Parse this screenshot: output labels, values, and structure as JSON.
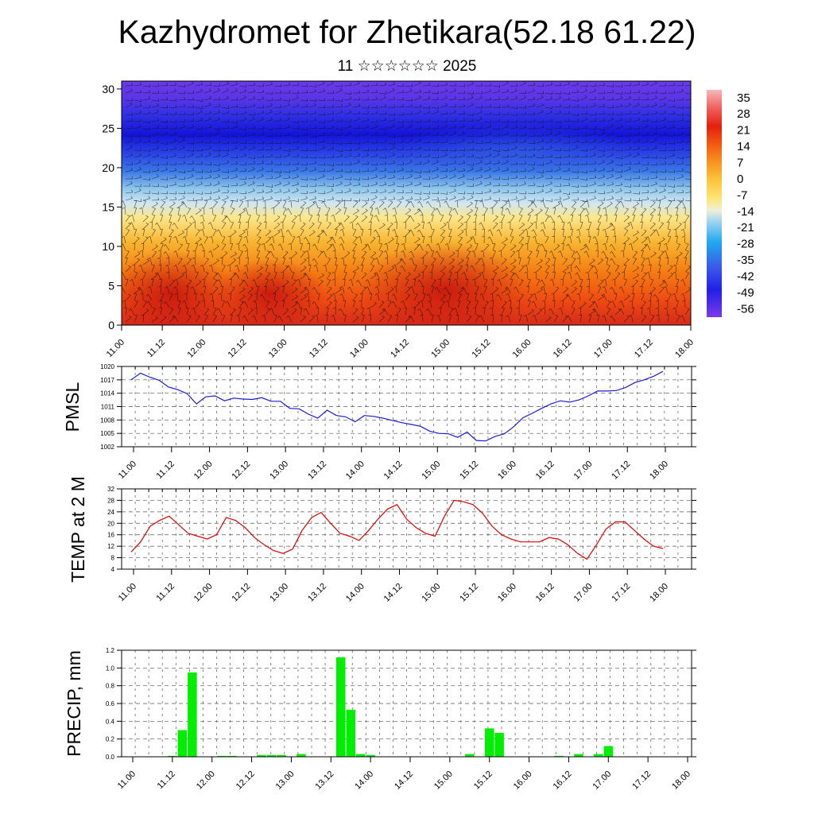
{
  "header": {
    "title": "Kazhydromet for Zhetikara(52.18 61.22)",
    "subtitle": "11 ☆☆☆☆☆☆ 2025"
  },
  "colors": {
    "pmsl": "#1a1ad9",
    "temp": "#e00000",
    "precip": "#00ee00",
    "background": "#ffffff"
  },
  "chart_data": [
    {
      "type": "heatmap",
      "title": "",
      "xlabel": "",
      "ylabel": "",
      "x_ticks": [
        "11.00",
        "11.12",
        "12.00",
        "12.12",
        "13.00",
        "13.12",
        "14.00",
        "14.12",
        "15.00",
        "15.12",
        "16.00",
        "16.12",
        "17.00",
        "17.12",
        "18.00"
      ],
      "y_ticks": [
        0,
        5,
        10,
        15,
        20,
        25,
        30
      ],
      "ylim": [
        0,
        31
      ],
      "colorbar_ticks": [
        35,
        28,
        21,
        14,
        7,
        0,
        -7,
        -14,
        -21,
        -28,
        -35,
        -42,
        -49,
        -56
      ],
      "colorbar_range": [
        -60,
        38
      ],
      "overlay": "wind barbs"
    },
    {
      "type": "line",
      "ylabel": "PMSL",
      "x_ticks": [
        "11.00",
        "11.12",
        "12.00",
        "12.12",
        "13.00",
        "13.12",
        "14.00",
        "14.12",
        "15.00",
        "15.12",
        "16.00",
        "16.12",
        "17.00",
        "17.12",
        "18.00"
      ],
      "y_ticks": [
        1002,
        1005,
        1008,
        1011,
        1014,
        1017,
        1020
      ],
      "ylim": [
        1002,
        1020
      ],
      "grid": true,
      "series": [
        {
          "values": [
            1017.0,
            1018.5,
            1017.6,
            1016.9,
            1015.4,
            1014.8,
            1013.9,
            1011.6,
            1013.2,
            1013.4,
            1012.3,
            1012.9,
            1012.7,
            1012.6,
            1013.0,
            1012.2,
            1012.2,
            1010.6,
            1010.5,
            1009.3,
            1008.4,
            1010.2,
            1009.0,
            1008.7,
            1007.6,
            1009.0,
            1008.8,
            1008.4,
            1007.9,
            1007.4,
            1007.0,
            1006.6,
            1005.5,
            1005.0,
            1004.9,
            1004.1,
            1005.3,
            1003.4,
            1003.3,
            1004.3,
            1004.9,
            1006.5,
            1008.5,
            1009.5,
            1010.6,
            1011.6,
            1012.3,
            1012.0,
            1012.5,
            1013.4,
            1014.5,
            1014.5,
            1014.6,
            1015.3,
            1016.4,
            1017.0,
            1017.8,
            1018.9
          ]
        }
      ]
    },
    {
      "type": "line",
      "ylabel": "TEMP at 2 M",
      "x_ticks": [
        "11.00",
        "11.12",
        "12.00",
        "12.12",
        "13.00",
        "13.12",
        "14.00",
        "14.12",
        "15.00",
        "15.12",
        "16.00",
        "16.12",
        "17.00",
        "17.12",
        "18.00"
      ],
      "y_ticks": [
        4,
        8,
        12,
        16,
        20,
        24,
        28,
        32
      ],
      "ylim": [
        4,
        32
      ],
      "grid": true,
      "series": [
        {
          "values": [
            10.0,
            13.5,
            19.0,
            21.0,
            22.5,
            19.5,
            16.5,
            15.5,
            14.5,
            16.0,
            22.0,
            21.0,
            18.5,
            15.0,
            12.5,
            10.5,
            9.5,
            11.0,
            17.5,
            22.0,
            23.8,
            20.0,
            16.5,
            15.5,
            14.0,
            17.5,
            21.5,
            25.0,
            26.5,
            21.5,
            18.5,
            16.5,
            15.5,
            22.5,
            28.0,
            27.5,
            26.5,
            23.5,
            19.0,
            16.0,
            14.5,
            13.5,
            13.5,
            13.5,
            15.0,
            14.5,
            12.5,
            9.5,
            7.5,
            12.5,
            18.0,
            20.5,
            20.5,
            17.5,
            14.5,
            12.0,
            11.2
          ]
        }
      ]
    },
    {
      "type": "bar",
      "ylabel": "PRECIP, mm",
      "x_ticks": [
        "11.00",
        "11.12",
        "12.00",
        "12.12",
        "13.00",
        "13.12",
        "14.00",
        "14.12",
        "15.00",
        "15.12",
        "16.00",
        "16.12",
        "17.00",
        "17.12",
        "18.00"
      ],
      "y_ticks": [
        "0.0",
        "0.2",
        "0.4",
        "0.6",
        "0.8",
        "1.0",
        "1.2"
      ],
      "ylim": [
        0,
        1.2
      ],
      "grid": true,
      "series": [
        {
          "values": [
            0,
            0,
            0,
            0,
            0.01,
            0.3,
            0.95,
            0,
            0,
            0.01,
            0.01,
            0,
            0,
            0.02,
            0.02,
            0.02,
            0,
            0.03,
            0,
            0,
            0,
            1.12,
            0.53,
            0.03,
            0.02,
            0,
            0,
            0,
            0,
            0,
            0,
            0,
            0,
            0,
            0.03,
            0,
            0.32,
            0.27,
            0,
            0,
            0,
            0,
            0,
            0.01,
            0,
            0.03,
            0,
            0.03,
            0.12,
            0,
            0,
            0,
            0,
            0,
            0,
            0,
            0
          ]
        }
      ]
    }
  ]
}
